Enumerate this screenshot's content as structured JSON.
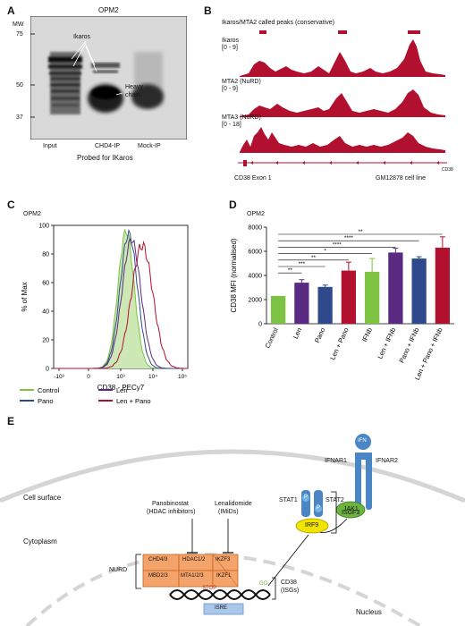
{
  "panelA": {
    "letter": "A",
    "title": "OPM2",
    "mw_label": "MW",
    "mw_markers": [
      "75",
      "50",
      "37"
    ],
    "band_labels": [
      "Ikaros",
      "Heavy",
      "chain"
    ],
    "lanes": [
      "Input",
      "CHD4-IP",
      "Mock-IP"
    ],
    "caption": "Probed for IKaros"
  },
  "panelB": {
    "letter": "B",
    "peaks_title": "Ikaros/MTA2 called peaks (conservative)",
    "tracks": [
      {
        "name": "Ikaros",
        "range": "[0 - 9]"
      },
      {
        "name": "MTA2 (NuRD)",
        "range": "[0 - 9]"
      },
      {
        "name": "MTA3 (NuRD)",
        "range": "[0 - 18]"
      }
    ],
    "gene_label": "CD38 Exon 1",
    "gene_small": "CD38",
    "cell_line": "GM12878 cell line",
    "color": "#b2102f"
  },
  "panelC": {
    "letter": "C",
    "title": "OPM2",
    "chart_data": {
      "type": "line",
      "ylabel": "% of Max",
      "xlabel": "CD38 - PECy7",
      "y_ticks": [
        "0",
        "20",
        "40",
        "60",
        "80",
        "100"
      ],
      "x_ticks": [
        "-10³",
        "0",
        "10³",
        "10⁴",
        "10⁵"
      ],
      "ylim": [
        0,
        100
      ],
      "series": [
        {
          "name": "Control",
          "color": "#7dc242"
        },
        {
          "name": "Len",
          "color": "#5a2a82"
        },
        {
          "name": "Pano",
          "color": "#2e4a8c"
        },
        {
          "name": "Len + Pano",
          "color": "#b2102f"
        }
      ]
    }
  },
  "panelD": {
    "letter": "D",
    "title": "OPM2",
    "chart_data": {
      "type": "bar",
      "ylabel": "CD38 MFI (normalised)",
      "ylim": [
        0,
        8000
      ],
      "y_ticks": [
        "0",
        "2000",
        "4000",
        "6000",
        "8000"
      ],
      "categories": [
        "Control",
        "Len",
        "Pano",
        "Len + Pano",
        "IFNb",
        "Len + IFNb",
        "Pano + IFNb",
        "Len + Pano + IFNb"
      ],
      "values": [
        2300,
        3400,
        3050,
        4400,
        4300,
        5900,
        5400,
        6300
      ],
      "errors": [
        0,
        250,
        150,
        700,
        1100,
        350,
        150,
        900
      ],
      "colors": [
        "#7dc242",
        "#5a2a82",
        "#2e4a8c",
        "#b2102f",
        "#7dc242",
        "#5a2a82",
        "#2e4a8c",
        "#b2102f"
      ],
      "significance": [
        {
          "from": 0,
          "to": 1,
          "label": "**"
        },
        {
          "from": 0,
          "to": 2,
          "label": "***"
        },
        {
          "from": 0,
          "to": 3,
          "label": "**"
        },
        {
          "from": 0,
          "to": 4,
          "label": "*"
        },
        {
          "from": 0,
          "to": 5,
          "label": "****"
        },
        {
          "from": 0,
          "to": 6,
          "label": "****"
        },
        {
          "from": 0,
          "to": 7,
          "label": "**"
        }
      ]
    }
  },
  "panelE": {
    "letter": "E",
    "cell_surface": "Cell surface",
    "cytoplasm": "Cytoplasm",
    "nucleus": "Nucleus",
    "ifn": "IFN",
    "ifnar1": "IFNAR1",
    "ifnar2": "IFNAR2",
    "jak1": "JAK1",
    "stat1": "STAT1",
    "stat2": "STAT2",
    "p": "P",
    "isgf3": "ISGF3",
    "irf9": "IRF9",
    "pano_line1": "Panobinostat",
    "pano_line2": "(HDAC inhibitors)",
    "len_line1": "Lenalidomide",
    "len_line2": "(IMiDs)",
    "nurd": "NURD",
    "boxes": [
      "CHD4/3",
      "HDAC1/2",
      "IKZF3",
      "MBD2/3",
      "MTA1/2/3",
      "IKZF1"
    ],
    "stop": "STOP",
    "go": "GO",
    "cd38_line1": "CD38",
    "cd38_line2": "(ISGs)",
    "isre": "ISRE"
  }
}
